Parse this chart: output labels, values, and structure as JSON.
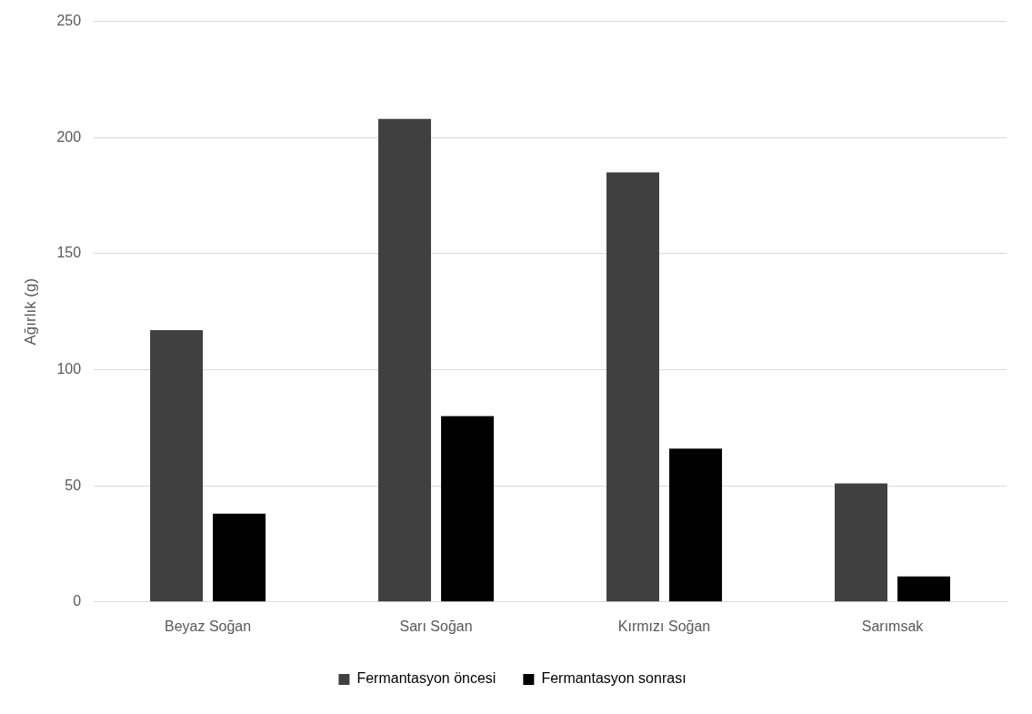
{
  "chart_data": {
    "type": "bar",
    "ylabel": "Ağırlık (g)",
    "categories": [
      "Beyaz Soğan",
      "Sarı Soğan",
      "Kırmızı Soğan",
      "Sarımsak"
    ],
    "series": [
      {
        "name": "Fermantasyon öncesi",
        "color": "#404040",
        "values": [
          117,
          208,
          185,
          51
        ]
      },
      {
        "name": "Fermantasyon sonrası",
        "color": "#000000",
        "values": [
          38,
          80,
          66,
          11
        ]
      }
    ],
    "ylim": [
      0,
      250
    ],
    "yticks": [
      0,
      50,
      100,
      150,
      200,
      250
    ],
    "grid": "y",
    "legend": "bottom"
  }
}
